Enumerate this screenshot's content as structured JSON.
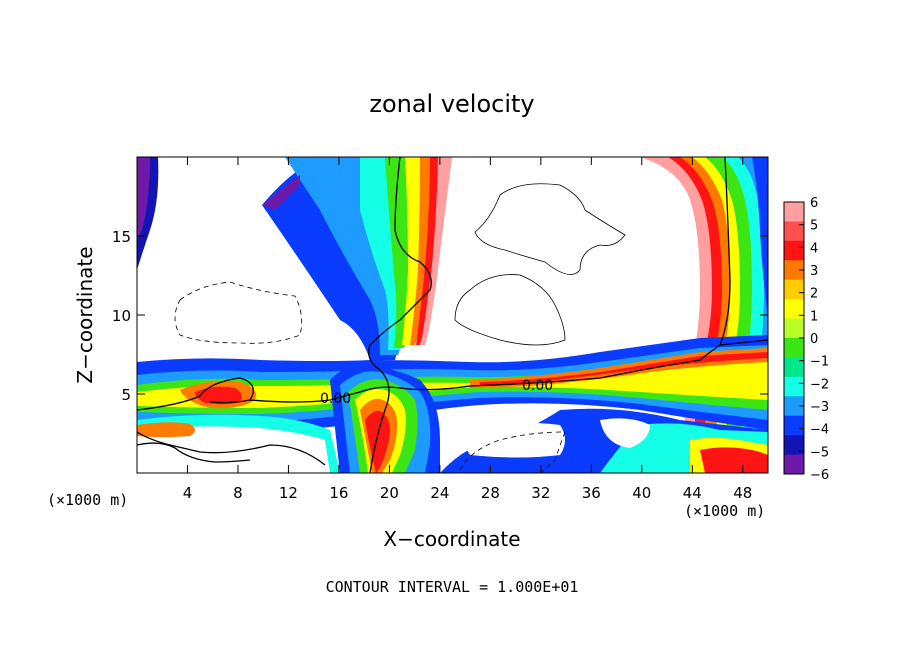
{
  "chart_data": {
    "type": "heatmap",
    "title": "zonal velocity",
    "xlabel": "X−coordinate",
    "ylabel": "Z−coordinate",
    "x_unit": "(×1000 m)",
    "x_ticks": [
      4,
      8,
      12,
      16,
      20,
      24,
      28,
      32,
      36,
      40,
      44,
      48
    ],
    "y_ticks": [
      5,
      10,
      15
    ],
    "xlim": [
      0,
      50
    ],
    "ylim": [
      0,
      20
    ],
    "colorbar": {
      "levels": [
        6,
        5,
        4,
        3,
        2,
        1,
        0,
        -1,
        -2,
        -3,
        -4,
        -5,
        -6
      ],
      "labels": [
        "6",
        "5",
        "4",
        "3",
        "2",
        "1",
        "0",
        "−1",
        "−2",
        "−3",
        "−4",
        "−5",
        "−6"
      ],
      "colors": [
        "#ff9f9f",
        "#ff5050",
        "#ff1414",
        "#ff7a00",
        "#ffcc00",
        "#ffff00",
        "#b8ff2a",
        "#3ce614",
        "#00e68a",
        "#14ffe6",
        "#1e9bff",
        "#0a3cff",
        "#1414b4",
        "#6e1aa8"
      ]
    },
    "contour_labels": [
      {
        "text": "0.00",
        "x": 14.8,
        "z": 4.6
      },
      {
        "text": "0.00",
        "x": 31.5,
        "z": 5.6
      }
    ],
    "contour_interval": "CONTOUR INTERVAL = 1.000E+01"
  }
}
